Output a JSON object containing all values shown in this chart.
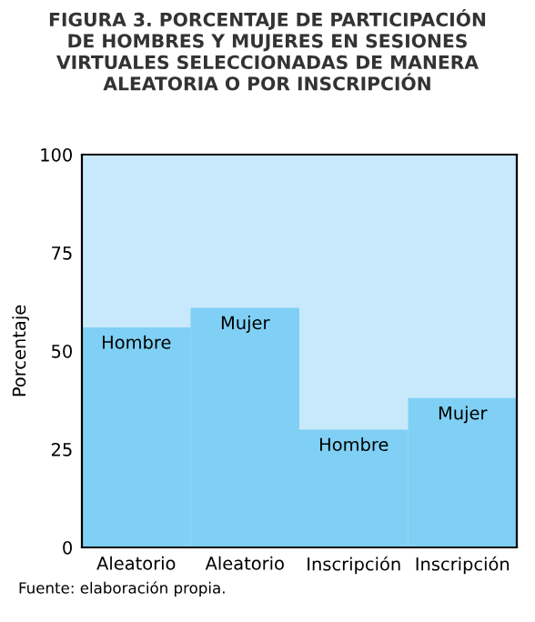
{
  "chart_data": {
    "type": "bar",
    "title": "FIGURA 3. PORCENTAJE DE PARTICIPACIÓN\nDE HOMBRES Y MUJERES EN SESIONES\nVIRTUALES SELECCIONADAS DE MANERA\nALEATORIA O POR INSCRIPCIÓN",
    "ylabel": "Porcentaje",
    "categories": [
      "Aleatorio",
      "Aleatorio",
      "Inscripción",
      "Inscripción"
    ],
    "values": [
      56,
      61,
      30,
      38
    ],
    "value_labels": [
      "Hombre",
      "Mujer",
      "Hombre",
      "Mujer"
    ],
    "color": "#7fd0f4",
    "ylim": [
      0,
      100
    ],
    "yticks": [
      0,
      25,
      50,
      75,
      100
    ],
    "annotations": [
      "Fuente: elaboración propia."
    ]
  }
}
